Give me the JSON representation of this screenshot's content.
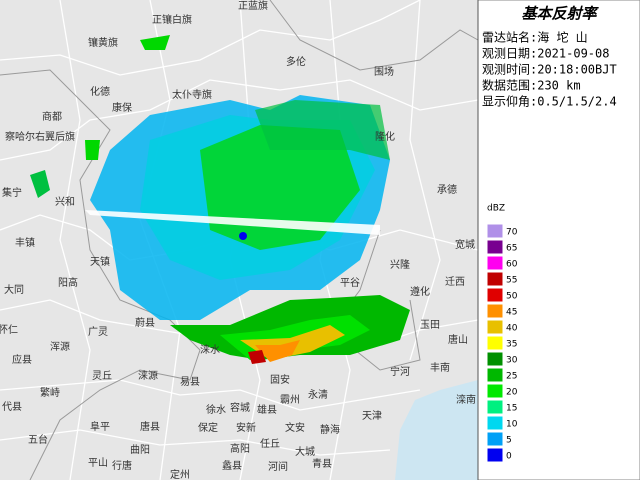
{
  "panel": {
    "title": "基本反射率",
    "lines": [
      "雷达站名:海 坨 山",
      "观测日期:2021-09-08",
      "观测时间:20:18:00BJT",
      "数据范围:230 km",
      "显示仰角:0.5/1.5/2.4"
    ]
  },
  "legend": {
    "unit": "dBZ",
    "levels": [
      {
        "label": "70",
        "color": "#b090e8"
      },
      {
        "label": "65",
        "color": "#780090"
      },
      {
        "label": "60",
        "color": "#ff00f0"
      },
      {
        "label": "55",
        "color": "#c00000"
      },
      {
        "label": "50",
        "color": "#e00000"
      },
      {
        "label": "45",
        "color": "#ff9000"
      },
      {
        "label": "40",
        "color": "#e8c000"
      },
      {
        "label": "35",
        "color": "#ffff00"
      },
      {
        "label": "30",
        "color": "#009000"
      },
      {
        "label": "25",
        "color": "#00b800"
      },
      {
        "label": "20",
        "color": "#00e800"
      },
      {
        "label": "15",
        "color": "#00f080"
      },
      {
        "label": "10",
        "color": "#00d8f0"
      },
      {
        "label": "5",
        "color": "#00a0f6"
      },
      {
        "label": "0",
        "color": "#0000f0"
      }
    ]
  },
  "map": {
    "labels": [
      "正镶白旗",
      "正蓝旗",
      "镶黄旗",
      "多伦",
      "围场",
      "化德",
      "康保",
      "太仆寺旗",
      "商都",
      "察哈尔右翼后旗",
      "隆化",
      "承德",
      "集宁",
      "兴和",
      "丰镇",
      "宽城",
      "兴隆",
      "迁西",
      "天镇",
      "阳高",
      "大同",
      "平谷",
      "遵化",
      "怀仁",
      "广灵",
      "蔚县",
      "浑源",
      "应县",
      "涞水",
      "玉田",
      "唐山",
      "灵丘",
      "涞源",
      "易县",
      "固安",
      "永清",
      "繁峙",
      "代县",
      "阜平",
      "唐县",
      "徐水",
      "容城",
      "雄县",
      "霸州",
      "保定",
      "安新",
      "文安",
      "静海",
      "天津",
      "五台",
      "曲阳",
      "高阳",
      "任丘",
      "大城",
      "平山",
      "行唐",
      "定州",
      "蠡县",
      "河间",
      "青县",
      "丰南",
      "宁河",
      "滦南"
    ]
  }
}
